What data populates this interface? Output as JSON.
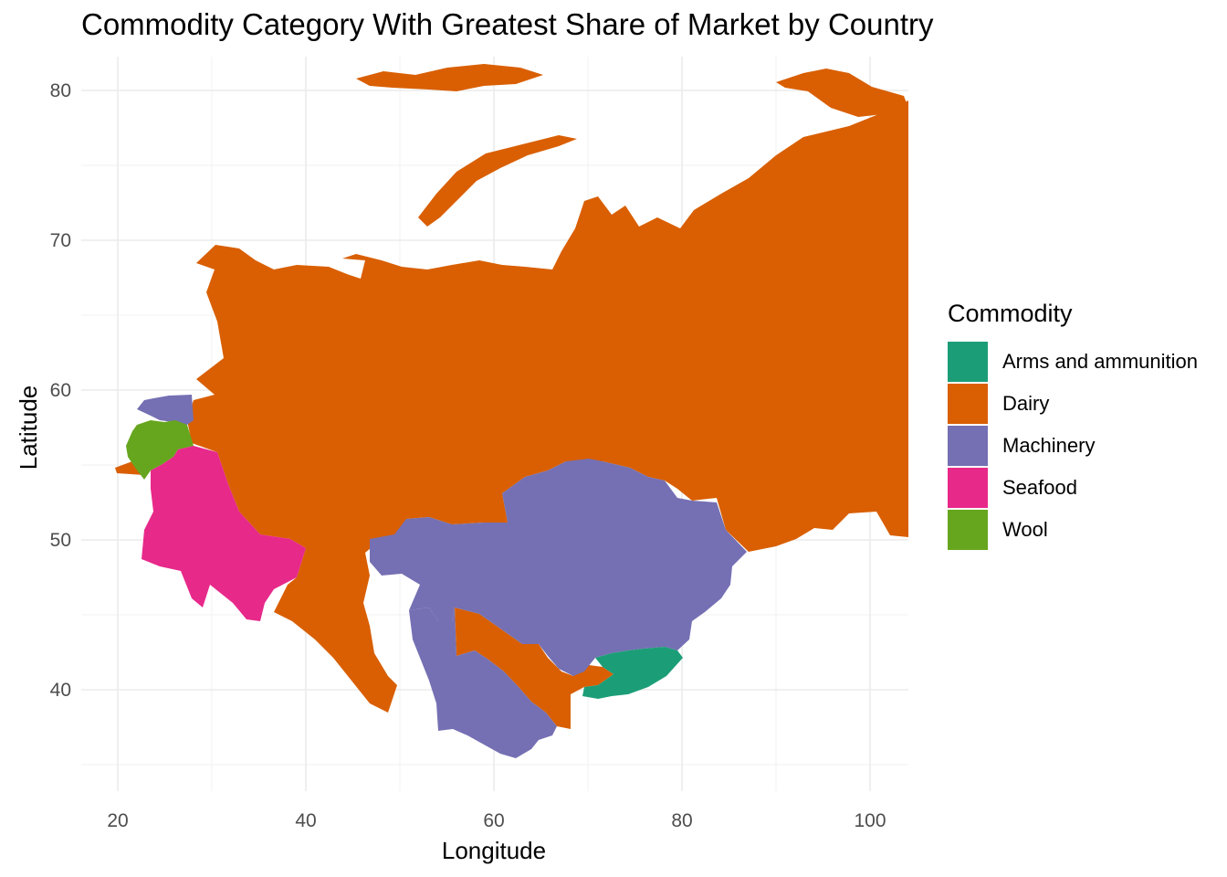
{
  "chart_data": {
    "type": "choropleth-map",
    "title": "Commodity Category With Greatest Share of Market by Country",
    "xlabel": "Longitude",
    "ylabel": "Latitude",
    "x_ticks": [
      "20",
      "40",
      "60",
      "80",
      "100"
    ],
    "y_ticks": [
      "40",
      "50",
      "60",
      "70",
      "80"
    ],
    "xlim": [
      16,
      104
    ],
    "ylim": [
      33,
      82
    ],
    "grid": true,
    "legend_position": "right",
    "legend": {
      "title": "Commodity",
      "items": [
        {
          "label": "Arms and ammunition",
          "color": "#1b9e77"
        },
        {
          "label": "Dairy",
          "color": "#d95f02"
        },
        {
          "label": "Machinery",
          "color": "#7570b3"
        },
        {
          "label": "Seafood",
          "color": "#e7298a"
        },
        {
          "label": "Wool",
          "color": "#66a61e"
        }
      ]
    }
  }
}
